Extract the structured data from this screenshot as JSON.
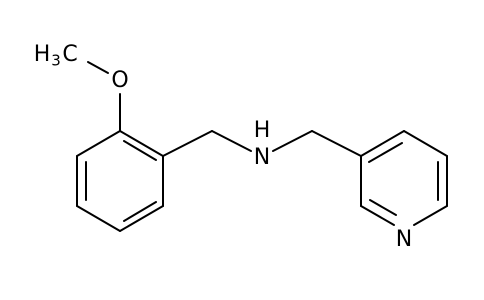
{
  "labels": {
    "methyl": {
      "h": "H",
      "sub": "3",
      "c": "C"
    },
    "oxygen": "O",
    "amine": {
      "h": "H",
      "n": "N"
    },
    "pyridine_n": "N"
  }
}
